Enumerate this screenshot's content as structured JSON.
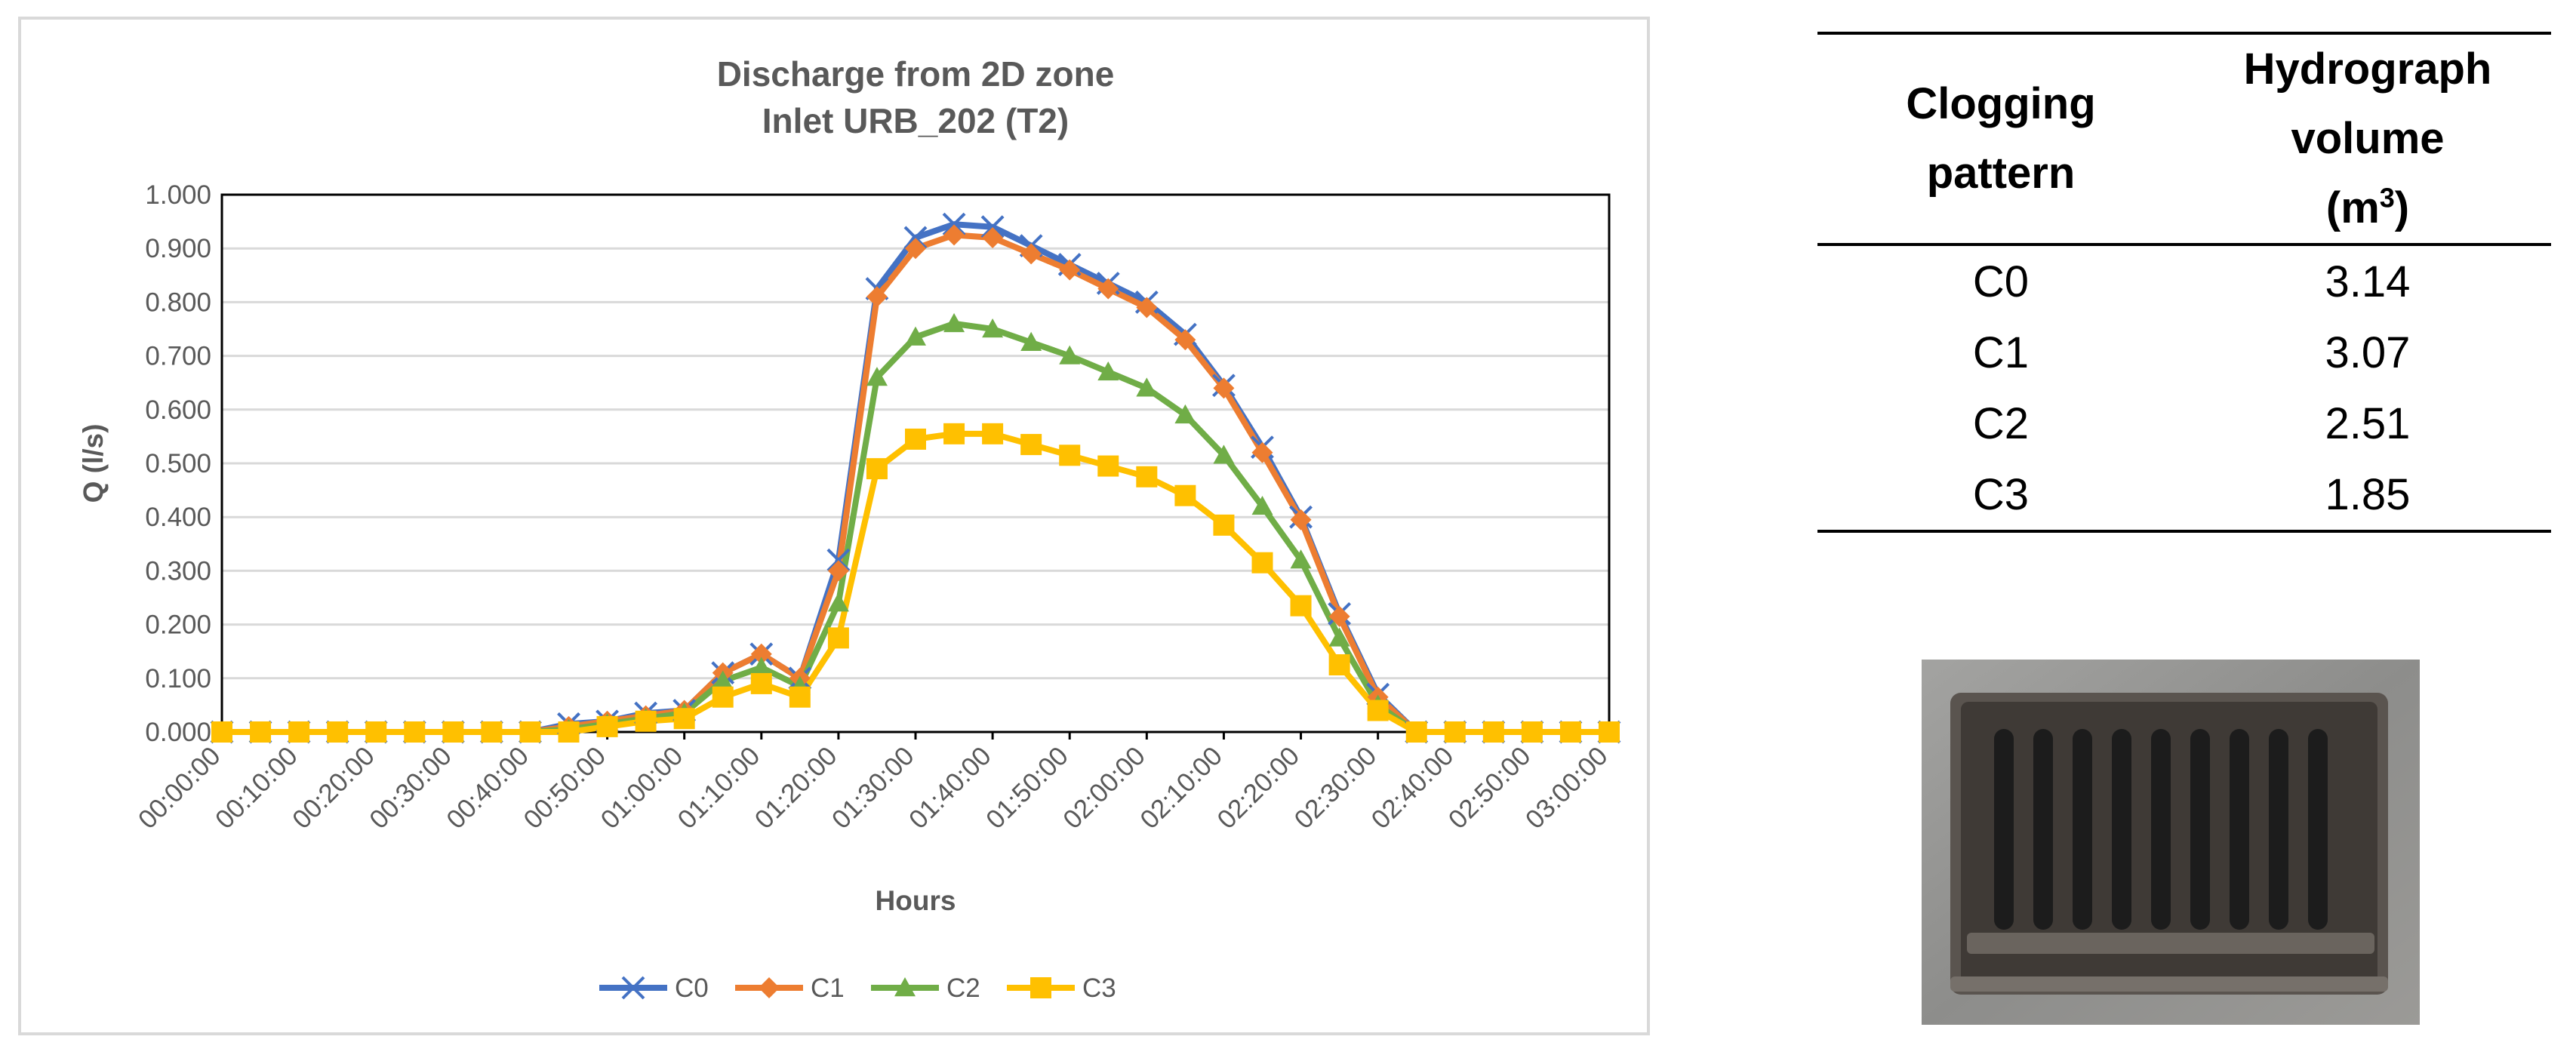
{
  "chart_data": {
    "type": "line",
    "title_lines": [
      "Discharge from 2D zone",
      "Inlet URB_202 (T2)"
    ],
    "xlabel": "Hours",
    "ylabel": "Q (l/s)",
    "ylim": [
      0,
      1.0
    ],
    "y_ticks": [
      "0.000",
      "0.100",
      "0.200",
      "0.300",
      "0.400",
      "0.500",
      "0.600",
      "0.700",
      "0.800",
      "0.900",
      "1.000"
    ],
    "x_tick_labels": [
      "00:00:00",
      "00:10:00",
      "00:20:00",
      "00:30:00",
      "00:40:00",
      "00:50:00",
      "01:00:00",
      "01:10:00",
      "01:20:00",
      "01:30:00",
      "01:40:00",
      "01:50:00",
      "02:00:00",
      "02:10:00",
      "02:20:00",
      "02:30:00",
      "02:40:00",
      "02:50:00",
      "03:00:00"
    ],
    "x": [
      "00:00:00",
      "00:05:00",
      "00:10:00",
      "00:15:00",
      "00:20:00",
      "00:25:00",
      "00:30:00",
      "00:35:00",
      "00:40:00",
      "00:45:00",
      "00:50:00",
      "00:55:00",
      "01:00:00",
      "01:05:00",
      "01:10:00",
      "01:15:00",
      "01:20:00",
      "01:25:00",
      "01:30:00",
      "01:35:00",
      "01:40:00",
      "01:45:00",
      "01:50:00",
      "01:55:00",
      "02:00:00",
      "02:05:00",
      "02:10:00",
      "02:15:00",
      "02:20:00",
      "02:25:00",
      "02:30:00",
      "02:35:00",
      "02:40:00",
      "02:45:00",
      "02:50:00",
      "02:55:00",
      "03:00:00"
    ],
    "grid": true,
    "legend_position": "bottom",
    "series": [
      {
        "name": "C0",
        "color": "#4472C4",
        "marker": "x",
        "values": [
          0,
          0,
          0,
          0,
          0,
          0,
          0,
          0,
          0,
          0.015,
          0.02,
          0.035,
          0.04,
          0.11,
          0.145,
          0.1,
          0.32,
          0.825,
          0.92,
          0.945,
          0.94,
          0.905,
          0.87,
          0.835,
          0.8,
          0.74,
          0.645,
          0.53,
          0.4,
          0.22,
          0.07,
          0,
          0,
          0,
          0,
          0,
          0
        ]
      },
      {
        "name": "C1",
        "color": "#ED7D31",
        "marker": "diamond",
        "values": [
          0,
          0,
          0,
          0,
          0,
          0,
          0,
          0,
          0,
          0.01,
          0.02,
          0.03,
          0.04,
          0.11,
          0.145,
          0.1,
          0.3,
          0.81,
          0.9,
          0.925,
          0.92,
          0.89,
          0.86,
          0.825,
          0.79,
          0.73,
          0.64,
          0.52,
          0.395,
          0.215,
          0.065,
          0,
          0,
          0,
          0,
          0,
          0
        ]
      },
      {
        "name": "C2",
        "color": "#70AD47",
        "marker": "triangle",
        "values": [
          0,
          0,
          0,
          0,
          0,
          0,
          0,
          0,
          0,
          0.005,
          0.015,
          0.025,
          0.035,
          0.095,
          0.12,
          0.085,
          0.24,
          0.66,
          0.735,
          0.76,
          0.75,
          0.725,
          0.7,
          0.67,
          0.64,
          0.59,
          0.515,
          0.42,
          0.32,
          0.175,
          0.05,
          0,
          0,
          0,
          0,
          0,
          0
        ]
      },
      {
        "name": "C3",
        "color": "#FFC000",
        "marker": "square",
        "values": [
          0,
          0,
          0,
          0,
          0,
          0,
          0,
          0,
          0,
          0,
          0.01,
          0.02,
          0.025,
          0.065,
          0.09,
          0.065,
          0.175,
          0.49,
          0.545,
          0.555,
          0.555,
          0.535,
          0.515,
          0.495,
          0.475,
          0.44,
          0.385,
          0.315,
          0.235,
          0.125,
          0.04,
          0,
          0,
          0,
          0,
          0,
          0
        ]
      }
    ]
  },
  "table": {
    "headers": {
      "col1": [
        "Clogging",
        "pattern"
      ],
      "col2": [
        "Hydrograph",
        "volume",
        "(m",
        "3",
        ")"
      ]
    },
    "rows": [
      {
        "pattern": "C0",
        "volume": "3.14"
      },
      {
        "pattern": "C1",
        "volume": "3.07"
      },
      {
        "pattern": "C2",
        "volume": "2.51"
      },
      {
        "pattern": "C3",
        "volume": "1.85"
      }
    ]
  },
  "photo": {
    "subject": "grate-inlet",
    "frame_color": "#8a8a88",
    "slot_color": "#1c1c1c",
    "metal_color": "#4a4440"
  }
}
